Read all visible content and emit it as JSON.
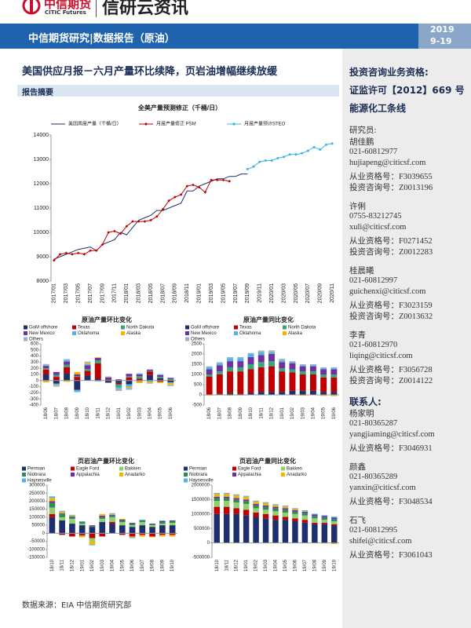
{
  "header": {
    "logo_cn": "中信期货",
    "logo_en": "CITIC Futures",
    "brand": "信研云资讯"
  },
  "banner": {
    "title": "中信期货研究|数据报告（原油）",
    "date_year": "2019",
    "date_day": "9-19"
  },
  "report_title": "美国供应月报－六月产量环比续降，页岩油增幅继续放缓",
  "section": "报告摘要",
  "chart_data": [
    {
      "type": "line",
      "title": "全美产量预测修正（千桶/日）",
      "categories": [
        "2017/01",
        null,
        "2017/03",
        null,
        "2017/05",
        null,
        "2017/07",
        null,
        "2017/09",
        null,
        "2017/11",
        null,
        "2018/01",
        null,
        "2018/03",
        null,
        "2018/05",
        null,
        "2018/07",
        null,
        "2018/09",
        null,
        "2018/11",
        null,
        "2019/01",
        null,
        "2019/03",
        null,
        "2019/05",
        null,
        "2019/07",
        null,
        "2019/09",
        null,
        "2019/11",
        null,
        "2020/01",
        null,
        "2020/03",
        null,
        "2020/05",
        null,
        "2020/07",
        null,
        "2020/09",
        null,
        "2020/11"
      ],
      "series": [
        {
          "name": "美国周度产量（千桶/日）",
          "color": "#1f2f6e",
          "marker": "none",
          "values": [
            8900,
            9000,
            9100,
            9200,
            9300,
            9350,
            9400,
            9250,
            9500,
            9600,
            9700,
            10000,
            9900,
            10200,
            10500,
            10600,
            10700,
            10900,
            10900,
            11000,
            11100,
            11200,
            11700,
            11700,
            11900,
            12000,
            12100,
            12200,
            12200,
            12300,
            12300,
            12400,
            12400,
            null,
            null,
            null,
            null,
            null,
            null,
            null,
            null,
            null,
            null,
            null,
            null,
            null,
            null
          ]
        },
        {
          "name": "月度产量修正 PSM",
          "color": "#c00000",
          "marker": "diamond",
          "values": [
            8850,
            9100,
            9150,
            9100,
            9150,
            9100,
            9250,
            9250,
            9500,
            10000,
            10050,
            9950,
            10250,
            10450,
            10450,
            10450,
            10500,
            10650,
            10950,
            11300,
            11450,
            11550,
            11900,
            11950,
            11850,
            11650,
            12150,
            12150,
            12150,
            12100,
            null,
            null,
            null,
            null,
            null,
            null,
            null,
            null,
            null,
            null,
            null,
            null,
            null,
            null,
            null,
            null,
            null
          ]
        },
        {
          "name": "月度产量预计STEO",
          "color": "#3cb4e6",
          "marker": "circle",
          "values": [
            null,
            null,
            null,
            null,
            null,
            null,
            null,
            null,
            null,
            null,
            null,
            null,
            null,
            null,
            null,
            null,
            null,
            null,
            null,
            null,
            null,
            null,
            null,
            null,
            null,
            null,
            null,
            null,
            null,
            null,
            null,
            null,
            12600,
            12700,
            12900,
            12950,
            12950,
            13050,
            13100,
            13200,
            13200,
            13250,
            13350,
            13500,
            13400,
            13600,
            13650
          ]
        }
      ],
      "ylim": [
        8000,
        14000
      ],
      "yticks": [
        8000,
        9000,
        10000,
        11000,
        12000,
        13000,
        14000
      ]
    },
    {
      "type": "stacked-bar",
      "title": "原油产量环比变化",
      "categories": [
        "18/06",
        "18/07",
        "18/08",
        "18/09",
        "18/10",
        "18/11",
        "18/12",
        "19/01",
        "19/02",
        "19/03",
        "19/04",
        "19/05",
        "19/06"
      ],
      "series": [
        {
          "name": "GoM offshore",
          "color": "#1f2f6e",
          "values": [
            100,
            -50,
            120,
            -150,
            80,
            30,
            -30,
            -40,
            -60,
            -10,
            90,
            40,
            -30
          ]
        },
        {
          "name": "Texas",
          "color": "#c00000",
          "values": [
            80,
            60,
            100,
            60,
            80,
            250,
            20,
            -20,
            50,
            30,
            60,
            -20,
            10
          ]
        },
        {
          "name": "North Dakota",
          "color": "#3aa57a",
          "values": [
            20,
            30,
            40,
            10,
            30,
            50,
            -10,
            -50,
            20,
            40,
            10,
            20,
            15
          ]
        },
        {
          "name": "New Mexico",
          "color": "#7030a0",
          "values": [
            40,
            50,
            50,
            30,
            60,
            40,
            30,
            20,
            40,
            30,
            20,
            30,
            20
          ]
        },
        {
          "name": "Oklahoma",
          "color": "#4fb3e8",
          "values": [
            10,
            -20,
            30,
            -30,
            20,
            -10,
            10,
            -30,
            -40,
            10,
            -20,
            10,
            -10
          ]
        },
        {
          "name": "Alaska",
          "color": "#f5b400",
          "values": [
            -30,
            -10,
            -20,
            40,
            20,
            10,
            5,
            -10,
            -20,
            -30,
            -20,
            -20,
            -30
          ]
        },
        {
          "name": "Others",
          "color": "#9ab0cc",
          "values": [
            20,
            -20,
            10,
            -10,
            20,
            -5,
            5,
            -20,
            -30,
            10,
            -10,
            5,
            -20
          ]
        }
      ],
      "ylim": [
        -400,
        600
      ],
      "yticks": [
        -400,
        -300,
        -200,
        -100,
        0,
        100,
        200,
        300,
        400,
        500,
        600
      ]
    },
    {
      "type": "stacked-bar",
      "title": "原油产量同比变化",
      "categories": [
        "18/06",
        "18/07",
        "18/08",
        "18/09",
        "18/10",
        "18/11",
        "18/12",
        "19/01",
        "19/02",
        "19/03",
        "19/04",
        "19/05",
        "19/06"
      ],
      "series": [
        {
          "name": "GoM offshore",
          "color": "#1f2f6e",
          "values": [
            0,
            50,
            100,
            50,
            100,
            150,
            150,
            150,
            200,
            200,
            200,
            150,
            150
          ]
        },
        {
          "name": "Texas",
          "color": "#c00000",
          "values": [
            900,
            950,
            1050,
            1100,
            1150,
            1200,
            1250,
            1000,
            900,
            800,
            800,
            700,
            700
          ]
        },
        {
          "name": "North Dakota",
          "color": "#3aa57a",
          "values": [
            100,
            150,
            200,
            200,
            250,
            250,
            250,
            150,
            150,
            150,
            150,
            150,
            150
          ]
        },
        {
          "name": "New Mexico",
          "color": "#7030a0",
          "values": [
            250,
            300,
            300,
            300,
            350,
            350,
            350,
            300,
            300,
            250,
            250,
            250,
            250
          ]
        },
        {
          "name": "Oklahoma",
          "color": "#4fb3e8",
          "values": [
            100,
            100,
            150,
            150,
            150,
            150,
            100,
            100,
            50,
            50,
            50,
            50,
            50
          ]
        },
        {
          "name": "Alaska",
          "color": "#f5b400",
          "values": [
            -30,
            -20,
            -40,
            -30,
            0,
            20,
            30,
            20,
            -20,
            -40,
            -20,
            -50,
            -60
          ]
        },
        {
          "name": "Others",
          "color": "#9ab0cc",
          "values": [
            50,
            50,
            50,
            50,
            50,
            50,
            50,
            50,
            50,
            50,
            50,
            50,
            50
          ]
        }
      ],
      "ylim": [
        -500,
        2500
      ],
      "yticks": [
        -500,
        0,
        500,
        1000,
        1500,
        2000,
        2500
      ]
    },
    {
      "type": "stacked-bar",
      "title": "页岩油产量环比变化",
      "categories": [
        "18/10",
        "18/11",
        "18/12",
        "19/01",
        "19/02",
        "19/03",
        "19/04",
        "19/05",
        "19/06",
        "19/07",
        "19/08",
        "19/09",
        "19/10"
      ],
      "series": [
        {
          "name": "Permian",
          "color": "#1f2f6e",
          "values": [
            100000,
            80000,
            60000,
            50000,
            40000,
            70000,
            60000,
            50000,
            40000,
            50000,
            40000,
            50000,
            50000
          ]
        },
        {
          "name": "Eagle Ford",
          "color": "#c00000",
          "values": [
            20000,
            -10000,
            -20000,
            -10000,
            -30000,
            -20000,
            10000,
            -10000,
            -20000,
            -10000,
            -20000,
            -10000,
            -10000
          ]
        },
        {
          "name": "Bakken",
          "color": "#8fd16a",
          "values": [
            40000,
            20000,
            30000,
            10000,
            -20000,
            20000,
            30000,
            20000,
            10000,
            20000,
            10000,
            10000,
            15000
          ]
        },
        {
          "name": "Niobrara",
          "color": "#2e8b57",
          "values": [
            30000,
            20000,
            10000,
            10000,
            5000,
            10000,
            10000,
            10000,
            10000,
            10000,
            5000,
            10000,
            10000
          ]
        },
        {
          "name": "Appalachia",
          "color": "#7030a0",
          "values": [
            10000,
            5000,
            5000,
            -5000,
            5000,
            10000,
            5000,
            5000,
            5000,
            0,
            5000,
            5000,
            5000
          ]
        },
        {
          "name": "Anadarko",
          "color": "#f5b400",
          "values": [
            20000,
            10000,
            5000,
            -10000,
            -20000,
            10000,
            5000,
            5000,
            -5000,
            -10000,
            -5000,
            -10000,
            -10000
          ]
        },
        {
          "name": "Haynesville",
          "color": "#4fb3e8",
          "values": [
            10000,
            5000,
            5000,
            5000,
            -5000,
            0,
            5000,
            0,
            -5000,
            5000,
            0,
            5000,
            0
          ]
        }
      ],
      "ylim": [
        -150000,
        300000
      ],
      "yticks": [
        -150000,
        -100000,
        -50000,
        0,
        50000,
        100000,
        150000,
        200000,
        250000,
        300000
      ]
    },
    {
      "type": "stacked-bar",
      "title": "页岩油产量同比变化",
      "categories": [
        "18/10",
        "18/11",
        "18/12",
        "19/01",
        "19/02",
        "19/03",
        "19/04",
        "19/05",
        "19/06",
        "19/07",
        "19/08",
        "19/09",
        "19/10"
      ],
      "series": [
        {
          "name": "Permian",
          "color": "#1f2f6e",
          "values": [
            1000000,
            1000000,
            1000000,
            950000,
            900000,
            850000,
            800000,
            800000,
            750000,
            700000,
            650000,
            650000,
            600000
          ]
        },
        {
          "name": "Eagle Ford",
          "color": "#c00000",
          "values": [
            250000,
            250000,
            200000,
            200000,
            150000,
            150000,
            150000,
            100000,
            100000,
            100000,
            50000,
            50000,
            50000
          ]
        },
        {
          "name": "Bakken",
          "color": "#8fd16a",
          "values": [
            200000,
            200000,
            200000,
            200000,
            150000,
            150000,
            150000,
            150000,
            150000,
            150000,
            150000,
            100000,
            100000
          ]
        },
        {
          "name": "Niobrara",
          "color": "#2e8b57",
          "values": [
            100000,
            100000,
            100000,
            100000,
            100000,
            100000,
            100000,
            100000,
            80000,
            80000,
            80000,
            80000,
            80000
          ]
        },
        {
          "name": "Appalachia",
          "color": "#7030a0",
          "values": [
            50000,
            50000,
            50000,
            50000,
            50000,
            50000,
            50000,
            50000,
            50000,
            50000,
            50000,
            50000,
            50000
          ]
        },
        {
          "name": "Anadarko",
          "color": "#f5b400",
          "values": [
            100000,
            100000,
            100000,
            100000,
            80000,
            80000,
            60000,
            60000,
            40000,
            20000,
            0,
            -20000,
            -40000
          ]
        },
        {
          "name": "Haynesville",
          "color": "#4fb3e8",
          "values": [
            30000,
            30000,
            30000,
            30000,
            30000,
            30000,
            30000,
            30000,
            30000,
            30000,
            30000,
            30000,
            30000
          ]
        }
      ],
      "ylim": [
        -500000,
        2000000
      ],
      "yticks": [
        -500000,
        0,
        500000,
        1000000,
        1500000,
        2000000
      ]
    }
  ],
  "source": "数据来源：EIA 中信期货研究部",
  "sidebar": {
    "qualification": [
      "投资咨询业务资格:",
      "证监许可【2012】669 号",
      "能源化工条线"
    ],
    "researchers_label": "研究员:",
    "researchers": [
      [
        "胡佳鹏",
        "021-60812977",
        "hujiapeng@citicsf.com",
        "从业资格号：F3039655",
        "投资咨询号：Z0013196"
      ],
      [
        "许俐",
        "0755-83212745",
        "xuli@citicsf.com",
        "从业资格号：F0271452",
        "投资咨询号：Z0012283"
      ],
      [
        "桂晨曦",
        "021-60812997",
        "guichenxi@citicsf.com",
        "从业资格号：F3023159",
        "投资咨询号：Z0013632"
      ],
      [
        "李青",
        "021-60812970",
        "liqing@citicsf.com",
        "从业资格号：F3056728",
        "投资咨询号：Z0014122"
      ]
    ],
    "contacts_label": "联系人:",
    "contacts": [
      [
        "杨家明",
        "021-80365287",
        "yangjiaming@citicsf.com",
        "从业资格号：F3046931"
      ],
      [
        "颜鑫",
        "021-80365289",
        "yanxin@citicsf.com",
        "从业资格号：F3048534"
      ],
      [
        "石飞",
        "021-60812995",
        "shifei@citicsf.com",
        "从业资格号：F3061043"
      ]
    ]
  }
}
